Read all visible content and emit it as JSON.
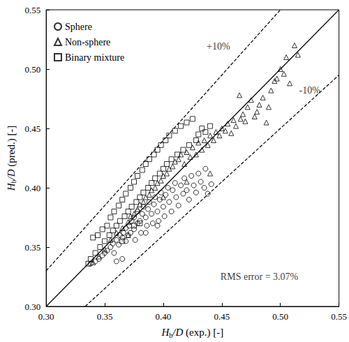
{
  "chart_data": {
    "type": "scatter",
    "x_label": "Hb/D (exp.) [-]",
    "y_label": "Hb/D (pred.) [-]",
    "xlim": [
      0.3,
      0.55
    ],
    "ylim": [
      0.3,
      0.55
    ],
    "xticks": [
      {
        "value": 0.3,
        "label": "0.30"
      },
      {
        "value": 0.35,
        "label": "0.35"
      },
      {
        "value": 0.4,
        "label": "0.40"
      },
      {
        "value": 0.45,
        "label": "0.45"
      },
      {
        "value": 0.5,
        "label": "0.50"
      },
      {
        "value": 0.55,
        "label": "0.55"
      }
    ],
    "yticks": [
      {
        "value": 0.3,
        "label": "0.30"
      },
      {
        "value": 0.35,
        "label": "0.35"
      },
      {
        "value": 0.4,
        "label": "0.40"
      },
      {
        "value": 0.45,
        "label": "0.45"
      },
      {
        "value": 0.5,
        "label": "0.50"
      },
      {
        "value": 0.55,
        "label": "0.55"
      }
    ],
    "grid": false,
    "legend": "upper left",
    "series": [
      {
        "name": "Sphere",
        "color": "#000000",
        "marker": "circle",
        "x": [
          0.338,
          0.342,
          0.345,
          0.348,
          0.35,
          0.352,
          0.355,
          0.357,
          0.358,
          0.36,
          0.362,
          0.363,
          0.365,
          0.366,
          0.368,
          0.368,
          0.37,
          0.371,
          0.372,
          0.373,
          0.375,
          0.375,
          0.376,
          0.378,
          0.378,
          0.38,
          0.381,
          0.382,
          0.383,
          0.385,
          0.386,
          0.387,
          0.388,
          0.39,
          0.391,
          0.392,
          0.393,
          0.395,
          0.396,
          0.397,
          0.398,
          0.4,
          0.401,
          0.402,
          0.404,
          0.405,
          0.407,
          0.408,
          0.41,
          0.411,
          0.413,
          0.415,
          0.417,
          0.418,
          0.42,
          0.422,
          0.424,
          0.426,
          0.428,
          0.43,
          0.432,
          0.435,
          0.436,
          0.438,
          0.441,
          0.36,
          0.365,
          0.385,
          0.395
        ],
        "values": [
          0.336,
          0.338,
          0.34,
          0.343,
          0.345,
          0.347,
          0.35,
          0.353,
          0.345,
          0.356,
          0.352,
          0.36,
          0.358,
          0.362,
          0.355,
          0.366,
          0.36,
          0.368,
          0.362,
          0.372,
          0.365,
          0.375,
          0.356,
          0.37,
          0.38,
          0.372,
          0.362,
          0.378,
          0.384,
          0.375,
          0.368,
          0.382,
          0.388,
          0.378,
          0.37,
          0.386,
          0.392,
          0.38,
          0.372,
          0.39,
          0.396,
          0.384,
          0.376,
          0.394,
          0.4,
          0.388,
          0.38,
          0.398,
          0.404,
          0.392,
          0.385,
          0.402,
          0.395,
          0.408,
          0.398,
          0.39,
          0.41,
          0.402,
          0.396,
          0.412,
          0.405,
          0.4,
          0.416,
          0.395,
          0.403,
          0.338,
          0.34,
          0.362,
          0.368
        ]
      },
      {
        "name": "Non-sphere",
        "color": "#000000",
        "marker": "triangle",
        "x": [
          0.34,
          0.345,
          0.35,
          0.355,
          0.36,
          0.365,
          0.37,
          0.372,
          0.375,
          0.378,
          0.38,
          0.383,
          0.385,
          0.388,
          0.39,
          0.393,
          0.395,
          0.398,
          0.4,
          0.403,
          0.405,
          0.408,
          0.41,
          0.413,
          0.415,
          0.418,
          0.42,
          0.423,
          0.425,
          0.428,
          0.43,
          0.433,
          0.435,
          0.438,
          0.44,
          0.443,
          0.445,
          0.448,
          0.45,
          0.453,
          0.455,
          0.458,
          0.46,
          0.462,
          0.465,
          0.466,
          0.468,
          0.47,
          0.472,
          0.475,
          0.478,
          0.48,
          0.482,
          0.485,
          0.488,
          0.49,
          0.492,
          0.495,
          0.497,
          0.5,
          0.503,
          0.505,
          0.512,
          0.515,
          0.508,
          0.44,
          0.42,
          0.4,
          0.37
        ],
        "values": [
          0.337,
          0.342,
          0.348,
          0.356,
          0.362,
          0.366,
          0.371,
          0.376,
          0.378,
          0.382,
          0.386,
          0.388,
          0.392,
          0.394,
          0.398,
          0.4,
          0.404,
          0.406,
          0.41,
          0.412,
          0.416,
          0.418,
          0.422,
          0.424,
          0.428,
          0.42,
          0.43,
          0.426,
          0.434,
          0.428,
          0.438,
          0.432,
          0.44,
          0.436,
          0.444,
          0.44,
          0.447,
          0.444,
          0.45,
          0.448,
          0.454,
          0.446,
          0.457,
          0.452,
          0.478,
          0.458,
          0.462,
          0.456,
          0.468,
          0.474,
          0.46,
          0.464,
          0.47,
          0.476,
          0.455,
          0.468,
          0.482,
          0.49,
          0.492,
          0.5,
          0.496,
          0.51,
          0.52,
          0.512,
          0.488,
          0.412,
          0.405,
          0.392,
          0.36
        ]
      },
      {
        "name": "Binary mixture",
        "color": "#000000",
        "marker": "square",
        "x": [
          0.336,
          0.338,
          0.34,
          0.342,
          0.344,
          0.346,
          0.348,
          0.35,
          0.352,
          0.354,
          0.355,
          0.357,
          0.358,
          0.36,
          0.362,
          0.363,
          0.365,
          0.367,
          0.368,
          0.37,
          0.372,
          0.373,
          0.375,
          0.377,
          0.378,
          0.38,
          0.382,
          0.383,
          0.385,
          0.387,
          0.388,
          0.39,
          0.392,
          0.393,
          0.395,
          0.397,
          0.398,
          0.4,
          0.402,
          0.403,
          0.405,
          0.407,
          0.41,
          0.412,
          0.415,
          0.417,
          0.42,
          0.422,
          0.425,
          0.428,
          0.43,
          0.433,
          0.436,
          0.44,
          0.38,
          0.375,
          0.365
        ],
        "values": [
          0.336,
          0.34,
          0.358,
          0.345,
          0.36,
          0.35,
          0.365,
          0.355,
          0.368,
          0.36,
          0.375,
          0.364,
          0.38,
          0.368,
          0.385,
          0.372,
          0.39,
          0.376,
          0.395,
          0.38,
          0.4,
          0.384,
          0.405,
          0.388,
          0.41,
          0.392,
          0.415,
          0.396,
          0.42,
          0.4,
          0.424,
          0.404,
          0.428,
          0.408,
          0.432,
          0.412,
          0.436,
          0.416,
          0.44,
          0.42,
          0.444,
          0.424,
          0.448,
          0.428,
          0.452,
          0.432,
          0.455,
          0.436,
          0.458,
          0.44,
          0.445,
          0.45,
          0.447,
          0.452,
          0.37,
          0.368,
          0.355
        ]
      }
    ],
    "reference_lines": [
      {
        "x": [
          0.3,
          0.55
        ],
        "y": [
          0.3,
          0.55
        ],
        "line_style": "solid"
      },
      {
        "x": [
          0.3,
          0.5
        ],
        "y": [
          0.33,
          0.55
        ],
        "line_style": "dashed"
      },
      {
        "x": [
          0.3333,
          0.55
        ],
        "y": [
          0.3,
          0.495
        ],
        "line_style": "dashed"
      }
    ],
    "annotations": [
      {
        "text": "+10%",
        "x": 0.447,
        "y": 0.519
      },
      {
        "text": "-10%",
        "x": 0.525,
        "y": 0.482
      },
      {
        "text": "RMS error = 3.07%",
        "x": 0.482,
        "y": 0.325
      }
    ]
  }
}
